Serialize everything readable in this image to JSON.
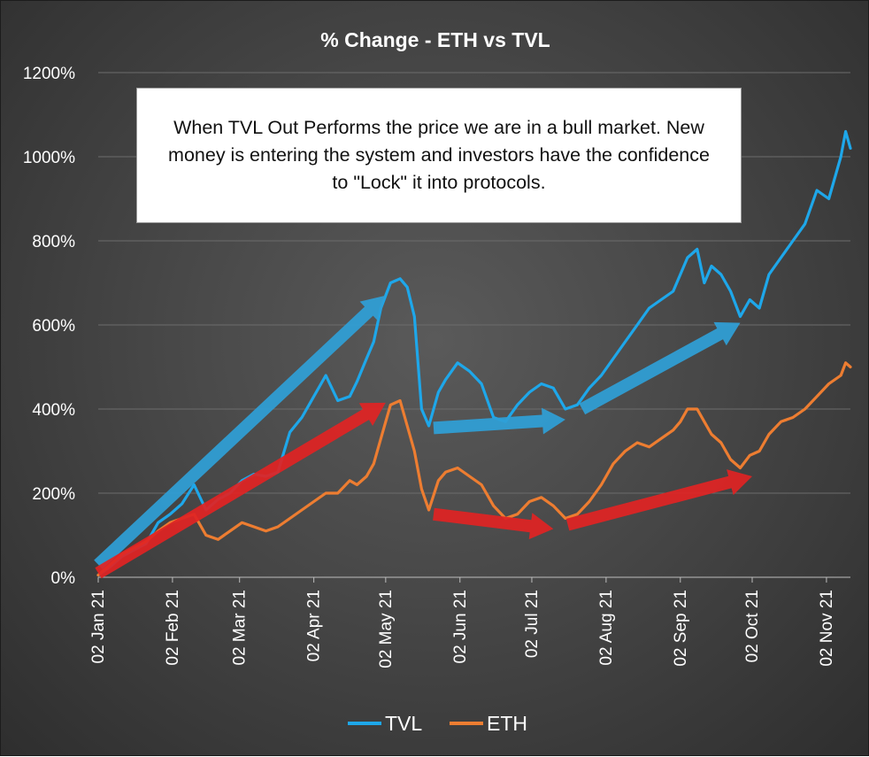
{
  "chart_data": {
    "type": "line",
    "title": "% Change - ETH vs TVL",
    "xlabel": "",
    "ylabel": "",
    "ylim": [
      0,
      1200
    ],
    "y_ticks": [
      0,
      200,
      400,
      600,
      800,
      1000,
      1200
    ],
    "y_tick_labels": [
      "0%",
      "200%",
      "400%",
      "600%",
      "800%",
      "1000%",
      "1200%"
    ],
    "x_ticks": [
      0,
      31,
      59,
      90,
      120,
      151,
      181,
      212,
      243,
      273,
      304
    ],
    "x_tick_labels": [
      "02 Jan 21",
      "02 Feb 21",
      "02 Mar 21",
      "02 Apr 21",
      "02 May 21",
      "02 Jun 21",
      "02 Jul 21",
      "02 Aug 21",
      "02 Sep 21",
      "02 Oct 21",
      "02 Nov 21"
    ],
    "xlim": [
      0,
      314
    ],
    "grid": true,
    "legend_position": "bottom",
    "series": [
      {
        "name": "TVL",
        "color": "#1ea7ea",
        "x": [
          0,
          5,
          10,
          15,
          20,
          25,
          30,
          35,
          40,
          45,
          50,
          55,
          60,
          65,
          70,
          75,
          80,
          85,
          90,
          95,
          100,
          105,
          108,
          112,
          115,
          118,
          122,
          126,
          129,
          132,
          135,
          138,
          142,
          145,
          150,
          155,
          160,
          165,
          170,
          175,
          180,
          185,
          190,
          195,
          200,
          205,
          210,
          215,
          220,
          225,
          230,
          235,
          240,
          243,
          246,
          250,
          253,
          256,
          260,
          264,
          268,
          272,
          276,
          280,
          285,
          290,
          295,
          300,
          305,
          310,
          312,
          314
        ],
        "values": [
          5,
          25,
          50,
          65,
          80,
          130,
          150,
          175,
          220,
          160,
          185,
          200,
          230,
          245,
          240,
          250,
          345,
          380,
          430,
          480,
          420,
          430,
          465,
          520,
          560,
          640,
          700,
          710,
          690,
          620,
          400,
          360,
          440,
          470,
          510,
          490,
          460,
          380,
          370,
          410,
          440,
          460,
          450,
          400,
          410,
          450,
          480,
          520,
          560,
          600,
          640,
          660,
          680,
          720,
          760,
          780,
          700,
          740,
          720,
          680,
          620,
          660,
          640,
          720,
          760,
          800,
          840,
          920,
          900,
          1000,
          1060,
          1020
        ]
      },
      {
        "name": "ETH",
        "color": "#ed7d31",
        "x": [
          0,
          5,
          10,
          15,
          20,
          25,
          30,
          35,
          40,
          45,
          50,
          55,
          60,
          65,
          70,
          75,
          80,
          85,
          90,
          95,
          100,
          105,
          108,
          112,
          115,
          118,
          122,
          126,
          129,
          132,
          135,
          138,
          142,
          145,
          150,
          155,
          160,
          165,
          170,
          175,
          180,
          185,
          190,
          195,
          200,
          205,
          210,
          215,
          220,
          225,
          230,
          235,
          240,
          243,
          246,
          250,
          253,
          256,
          260,
          264,
          268,
          272,
          276,
          280,
          285,
          290,
          295,
          300,
          305,
          310,
          312,
          314
        ],
        "values": [
          5,
          30,
          55,
          70,
          85,
          110,
          130,
          140,
          150,
          100,
          90,
          110,
          130,
          120,
          110,
          120,
          140,
          160,
          180,
          200,
          200,
          230,
          220,
          240,
          270,
          330,
          410,
          420,
          360,
          300,
          210,
          160,
          230,
          250,
          260,
          240,
          220,
          170,
          140,
          150,
          180,
          190,
          170,
          140,
          150,
          180,
          220,
          270,
          300,
          320,
          310,
          330,
          350,
          370,
          400,
          400,
          370,
          340,
          320,
          280,
          260,
          290,
          300,
          340,
          370,
          380,
          400,
          430,
          460,
          480,
          510,
          500
        ]
      }
    ]
  },
  "annotation": {
    "text": "When TVL Out Performs the price we are in a bull market. New money is entering the system and investors have the confidence to \"Lock\" it into protocols."
  },
  "arrows": [
    {
      "name": "tvl-rise-arrow",
      "color": "#2f9fd6",
      "from": [
        0,
        30
      ],
      "to": [
        120,
        670
      ]
    },
    {
      "name": "eth-rise-arrow",
      "color": "#e02424",
      "from": [
        0,
        10
      ],
      "to": [
        120,
        415
      ]
    },
    {
      "name": "tvl-flat-arrow",
      "color": "#2f9fd6",
      "from": [
        140,
        355
      ],
      "to": [
        195,
        375
      ]
    },
    {
      "name": "tvl-recovery-arrow",
      "color": "#2f9fd6",
      "from": [
        202,
        400
      ],
      "to": [
        268,
        605
      ]
    },
    {
      "name": "eth-decline-arrow",
      "color": "#e02424",
      "from": [
        140,
        150
      ],
      "to": [
        190,
        115
      ]
    },
    {
      "name": "eth-recovery-arrow",
      "color": "#e02424",
      "from": [
        196,
        125
      ],
      "to": [
        273,
        240
      ]
    }
  ],
  "legend": [
    {
      "label": "TVL",
      "color": "#1ea7ea"
    },
    {
      "label": "ETH",
      "color": "#ed7d31"
    }
  ]
}
